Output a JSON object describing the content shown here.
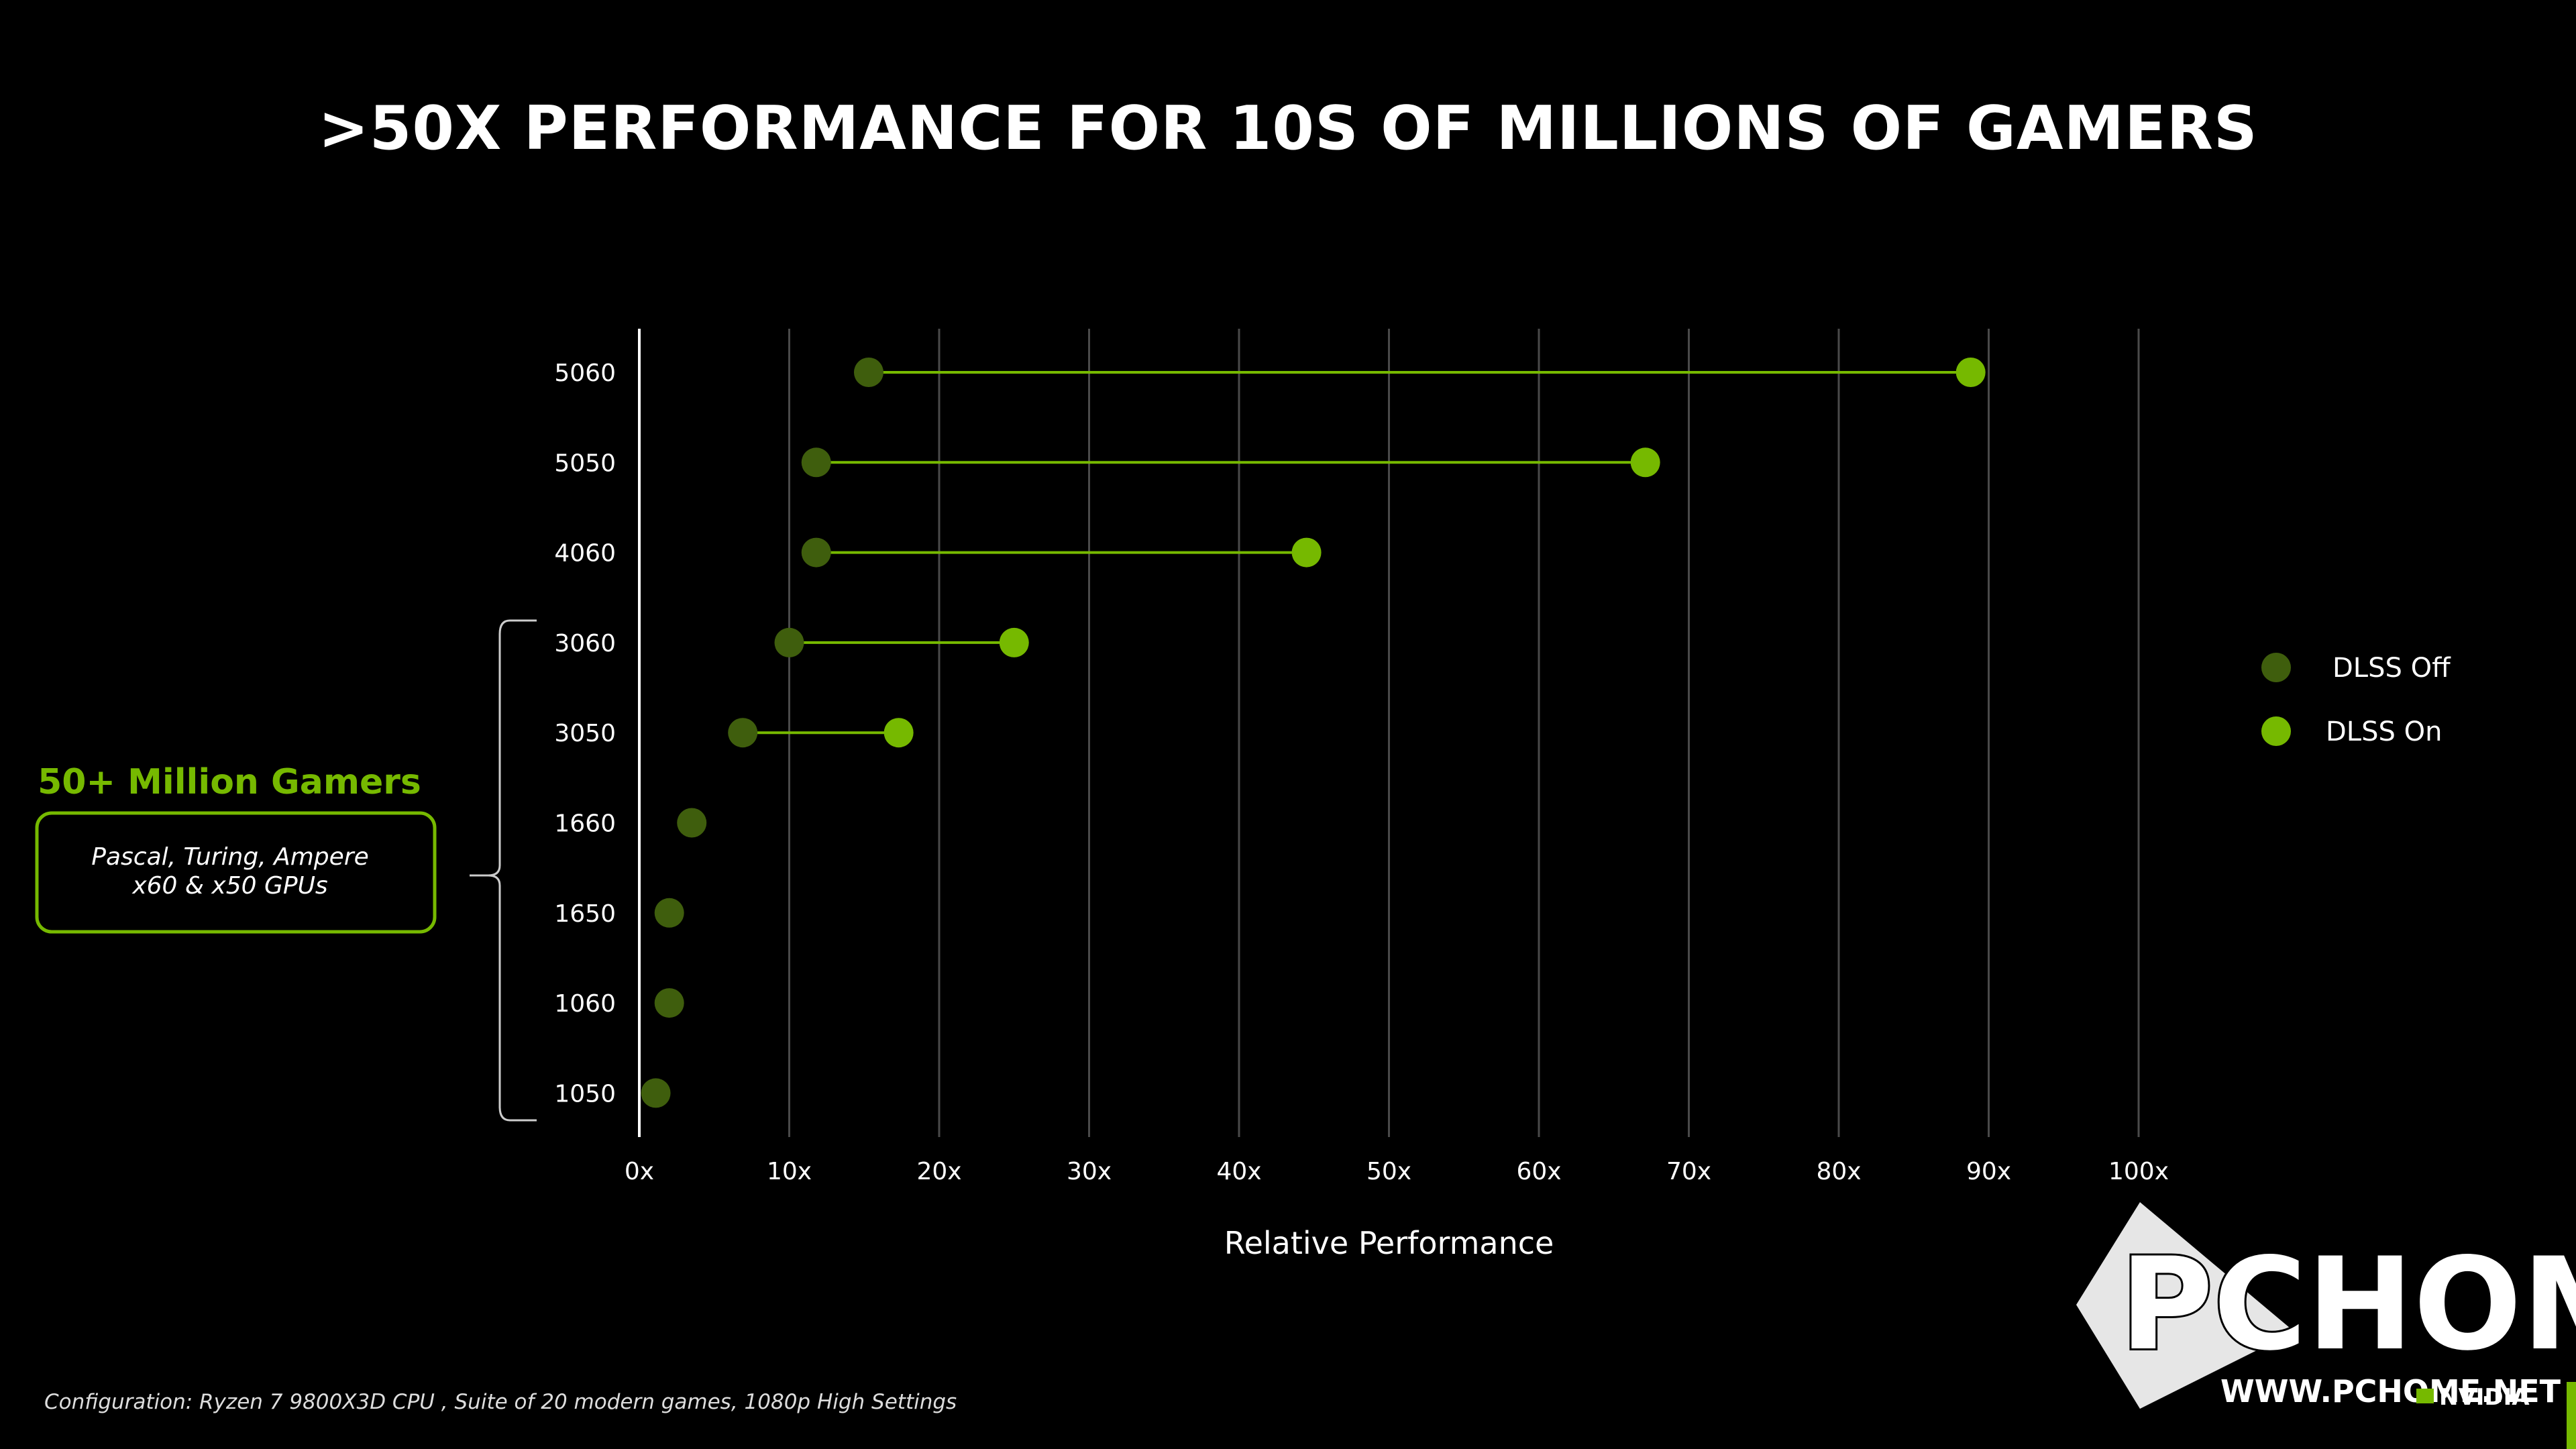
{
  "title": ">50X PERFORMANCE FOR 10S OF MILLIONS OF GAMERS",
  "chart_data": {
    "type": "scatter",
    "subtype": "dumbbell",
    "xlabel": "Relative Performance",
    "ylabel": "",
    "xlim": [
      0,
      100
    ],
    "x_ticks": [
      "0x",
      "10x",
      "20x",
      "30x",
      "40x",
      "50x",
      "60x",
      "70x",
      "80x",
      "90x",
      "100x"
    ],
    "grid": "vertical",
    "legend_position": "right",
    "categories": [
      "5060",
      "5050",
      "4060",
      "3060",
      "3050",
      "1660",
      "1650",
      "1060",
      "1050"
    ],
    "series": [
      {
        "name": "DLSS Off",
        "color": "#3f5e0d",
        "values": [
          15.3,
          11.8,
          11.8,
          10.0,
          6.9,
          3.5,
          2.0,
          2.0,
          1.1
        ]
      },
      {
        "name": "DLSS On",
        "color": "#76b900",
        "values": [
          88.8,
          67.1,
          44.5,
          25.0,
          17.3,
          null,
          null,
          null,
          null
        ]
      }
    ]
  },
  "callout": {
    "heading": "50+ Million Gamers",
    "lines": [
      "Pascal, Turing, Ampere",
      "x60 & x50 GPUs"
    ]
  },
  "footnote": "Configuration:  Ryzen 7 9800X3D CPU , Suite of 20 modern games, 1080p High Settings",
  "watermark": {
    "main": "PCHOME",
    "url": "WWW.PCHOME.NET"
  },
  "brand": "NVIDIA",
  "colors": {
    "background": "#000000",
    "accent": "#76b900",
    "dlss_off": "#3f5e0d",
    "grid": "#4a4a4a"
  }
}
